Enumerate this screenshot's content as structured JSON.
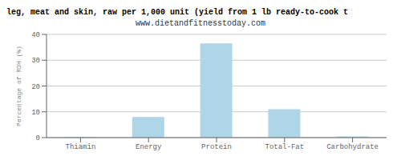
{
  "chart_data": {
    "type": "bar",
    "title": "leg, meat and skin, raw per 1,000 unit (yield from 1 lb ready-to-cook t",
    "subtitle": "www.dietandfitnesstoday.com",
    "categories": [
      "Thiamin",
      "Energy",
      "Protein",
      "Total-Fat",
      "Carbohydrate"
    ],
    "values": [
      0.3,
      8.0,
      36.5,
      11.0,
      0.5
    ],
    "color": "#aed6e8",
    "ylabel": "Percentage of RDH (%)",
    "ylim": [
      0,
      40
    ],
    "yticks": [
      0,
      10,
      20,
      30,
      40
    ],
    "grid": true
  }
}
